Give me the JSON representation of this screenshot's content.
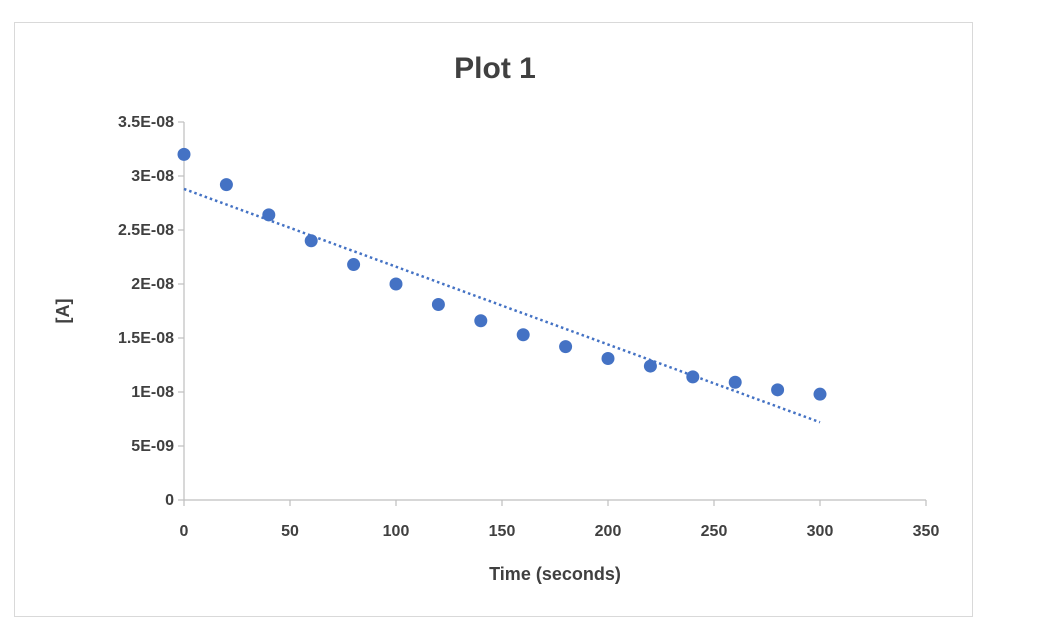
{
  "chart_data": {
    "type": "scatter",
    "title": "Plot 1",
    "xlabel": "Time (seconds)",
    "ylabel": "[A]",
    "xlim": [
      0,
      350
    ],
    "ylim": [
      0,
      3.5e-08
    ],
    "x_ticks": [
      0,
      50,
      100,
      150,
      200,
      250,
      300,
      350
    ],
    "x_tick_labels": [
      "0",
      "50",
      "100",
      "150",
      "200",
      "250",
      "300",
      "350"
    ],
    "y_ticks": [
      0,
      5e-09,
      1e-08,
      1.5e-08,
      2e-08,
      2.5e-08,
      3e-08,
      3.5e-08
    ],
    "y_tick_labels": [
      "0",
      "5E-09",
      "1E-08",
      "1.5E-08",
      "2E-08",
      "2.5E-08",
      "3E-08",
      "3.5E-08"
    ],
    "grid": false,
    "series": [
      {
        "marker_color": "#4472c4",
        "x": [
          0,
          20,
          40,
          60,
          80,
          100,
          120,
          140,
          160,
          180,
          200,
          220,
          240,
          260,
          280,
          300
        ],
        "y": [
          3.2e-08,
          2.92e-08,
          2.64e-08,
          2.4e-08,
          2.18e-08,
          2e-08,
          1.81e-08,
          1.66e-08,
          1.53e-08,
          1.42e-08,
          1.31e-08,
          1.24e-08,
          1.14e-08,
          1.09e-08,
          1.02e-08,
          9.8e-09
        ]
      }
    ],
    "trendline": {
      "type": "linear",
      "style": "dotted",
      "color": "#4472c4",
      "x": [
        0,
        300
      ],
      "y": [
        2.88e-08,
        7.2e-09
      ]
    }
  }
}
